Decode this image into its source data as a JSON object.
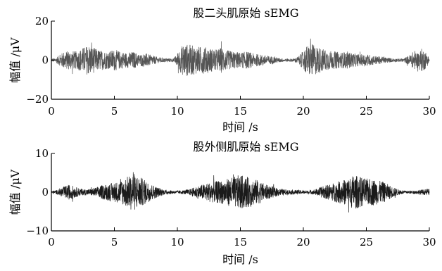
{
  "chart_data": [
    {
      "type": "line",
      "title": "股二头肌原始 sEMG",
      "xlabel": "时间 /s",
      "ylabel": "幅值 /μV",
      "xlim": [
        0,
        30
      ],
      "ylim": [
        -20,
        20
      ],
      "xticks": [
        0,
        5,
        10,
        15,
        20,
        25,
        30
      ],
      "yticks": [
        -20,
        0,
        20
      ],
      "ytick_labels": [
        "−20",
        "0",
        "20"
      ],
      "line_color": "#555555",
      "envelope": {
        "t": [
          0,
          0.3,
          0.6,
          1.0,
          1.5,
          2.0,
          2.5,
          3.0,
          3.5,
          4.0,
          4.5,
          5.0,
          5.5,
          6.0,
          6.5,
          7.0,
          7.5,
          8.0,
          8.5,
          9.0,
          9.4,
          9.7,
          9.9,
          10.1,
          10.5,
          11.0,
          11.5,
          12.0,
          12.5,
          13.0,
          13.5,
          14.0,
          14.5,
          15.0,
          15.5,
          16.0,
          16.5,
          17.0,
          17.5,
          18.0,
          18.5,
          19.0,
          19.3,
          19.6,
          19.9,
          20.2,
          20.6,
          21.0,
          21.5,
          22.0,
          22.5,
          23.0,
          23.5,
          24.0,
          24.5,
          25.0,
          25.5,
          26.0,
          26.5,
          27.0,
          27.5,
          28.0,
          28.5,
          28.8,
          29.1,
          29.4,
          29.7,
          30.0
        ],
        "amp": [
          0.8,
          1.0,
          2.5,
          4.5,
          5.0,
          4.5,
          6.5,
          8.0,
          6.0,
          5.0,
          4.5,
          5.5,
          4.5,
          3.8,
          4.5,
          3.0,
          3.5,
          2.5,
          1.5,
          1.0,
          0.9,
          0.9,
          2.5,
          5.0,
          8.5,
          8.0,
          7.0,
          7.0,
          6.5,
          5.5,
          6.5,
          5.0,
          4.5,
          4.0,
          4.5,
          3.5,
          3.0,
          2.5,
          2.0,
          1.2,
          0.8,
          0.8,
          0.9,
          2.0,
          4.0,
          7.0,
          8.5,
          7.5,
          6.0,
          5.0,
          4.5,
          4.0,
          4.5,
          3.5,
          3.0,
          3.2,
          2.5,
          2.0,
          1.5,
          1.0,
          0.8,
          1.0,
          3.0,
          5.0,
          4.0,
          6.0,
          4.5,
          1.5
        ]
      }
    },
    {
      "type": "line",
      "title": "股外侧肌原始 sEMG",
      "xlabel": "时间 /s",
      "ylabel": "幅值 /μV",
      "xlim": [
        0,
        30
      ],
      "ylim": [
        -10,
        10
      ],
      "xticks": [
        0,
        5,
        10,
        15,
        20,
        25,
        30
      ],
      "yticks": [
        -10,
        0,
        10
      ],
      "ytick_labels": [
        "−10",
        "0",
        "10"
      ],
      "line_color": "#1a1a1a",
      "envelope": {
        "t": [
          0,
          0.5,
          1.0,
          1.5,
          2.0,
          2.5,
          3.0,
          3.5,
          4.0,
          4.5,
          5.0,
          5.5,
          6.0,
          6.5,
          7.0,
          7.5,
          8.0,
          8.5,
          9.0,
          9.5,
          10.0,
          10.5,
          11.0,
          11.5,
          12.0,
          12.5,
          13.0,
          13.5,
          14.0,
          14.5,
          15.0,
          15.5,
          16.0,
          16.5,
          17.0,
          17.5,
          18.0,
          18.5,
          19.0,
          19.5,
          20.0,
          20.5,
          21.0,
          21.5,
          22.0,
          22.5,
          23.0,
          23.5,
          24.0,
          24.5,
          25.0,
          25.5,
          26.0,
          26.5,
          27.0,
          27.5,
          28.0,
          28.5,
          29.0,
          29.5,
          30.0
        ],
        "amp": [
          0.3,
          0.6,
          1.5,
          2.0,
          1.2,
          0.8,
          0.8,
          1.2,
          1.8,
          2.2,
          2.5,
          3.0,
          4.0,
          5.0,
          4.0,
          3.0,
          2.0,
          1.2,
          0.6,
          0.5,
          0.4,
          0.5,
          0.8,
          1.5,
          2.0,
          2.5,
          2.8,
          3.0,
          3.5,
          4.0,
          4.5,
          4.0,
          3.5,
          3.0,
          2.0,
          1.5,
          1.0,
          0.7,
          0.6,
          0.6,
          0.5,
          0.4,
          0.8,
          1.5,
          2.0,
          2.5,
          3.0,
          3.5,
          4.5,
          4.0,
          3.5,
          3.5,
          3.0,
          2.5,
          1.5,
          0.8,
          0.4,
          0.4,
          0.5,
          0.7,
          0.8
        ]
      }
    }
  ]
}
